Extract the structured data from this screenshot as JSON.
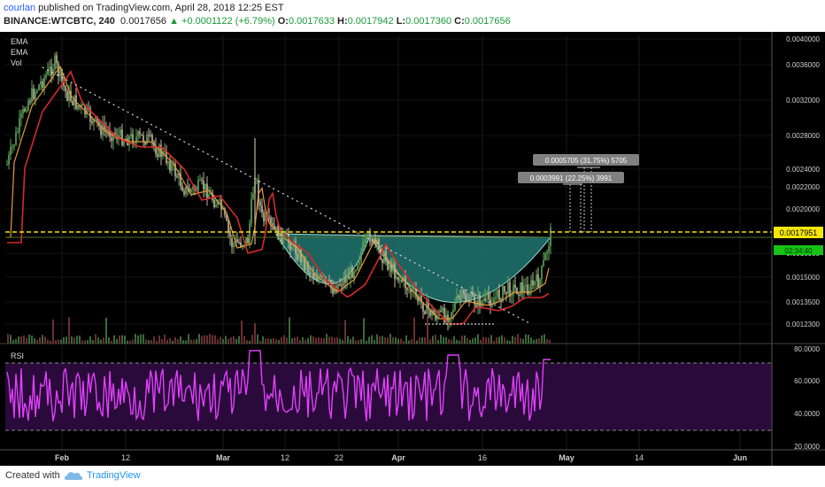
{
  "header": {
    "author": "courlan",
    "published": " published on TradingView.com, April 28, 2018 12:25 EST",
    "symbol": "BINANCE:WTCBTC, 240",
    "last": "0.0017656",
    "change_arrow": "▲",
    "change": "+0.0001122 (+6.79%)",
    "o_label": "O:",
    "o_value": "0.0017633",
    "h_label": "H:",
    "h_value": "0.0017942",
    "l_label": "L:",
    "l_value": "0.0017360",
    "c_label": "C:",
    "c_value": "0.0017656"
  },
  "legend": [
    "EMA",
    "EMA",
    "Vol"
  ],
  "price_axis": [
    "0.0040000",
    "0.0036000",
    "0.0032000",
    "0.0028000",
    "0.0024000",
    "0.0022000",
    "0.0020000",
    "0.0016000",
    "0.0015000",
    "0.0013500",
    "0.0012300"
  ],
  "price_tag": "0.0017951",
  "countdown_tag": "02:34:40",
  "measure_1": "0.0005705 (31.75%) 5705",
  "measure_2": "0.0003991 (22.25%) 3991",
  "rsi_label": "RSI",
  "rsi_axis": [
    "80.0000",
    "60.0000",
    "40.0000",
    "20.0000"
  ],
  "time_axis": [
    "Feb",
    "12",
    "Mar",
    "12",
    "22",
    "Apr",
    "16",
    "May",
    "14",
    "Jun"
  ],
  "footer": {
    "created": "Created with",
    "brand": "TradingView"
  },
  "colors": {
    "background": "#000000",
    "candle_up": "#5fa85a",
    "candle_down": "#c0b8a0",
    "ema_fast": "#e39b3a",
    "ema_slow": "#d32b2b",
    "cup_fill": "#1f6f6a",
    "resistance": "#f5e60a",
    "rsi_line": "#e040fb",
    "rsi_band": "#2a0a3a",
    "tag_green": "#15c215"
  }
}
